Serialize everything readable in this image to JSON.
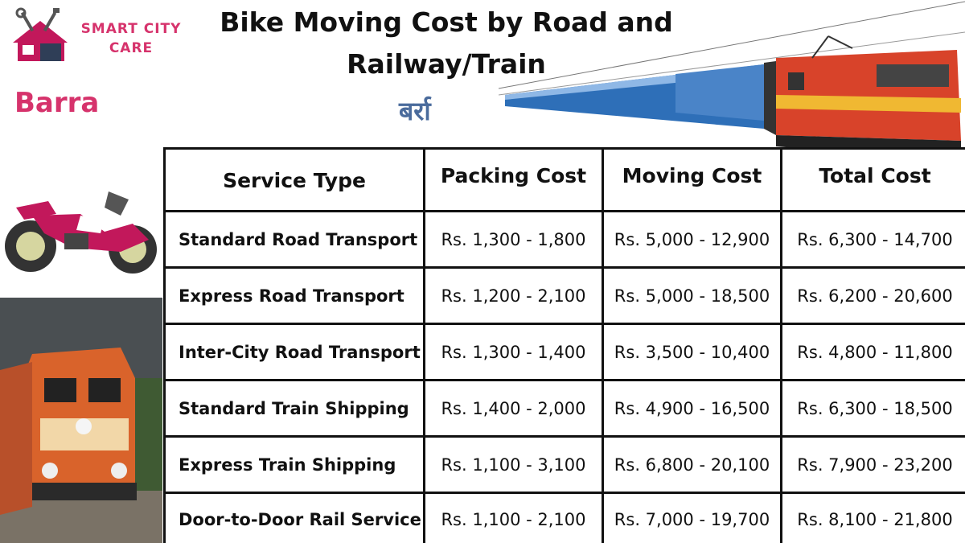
{
  "brand": {
    "line1": "SMART CITY",
    "line2": "CARE"
  },
  "title": {
    "line1": "Bike Moving Cost by Road and",
    "line2": "Railway/Train"
  },
  "place": {
    "english": "Barra",
    "hindi": "बर्रा"
  },
  "table": {
    "headers": [
      "Service Type",
      "Packing Cost",
      "Moving Cost",
      "Total Cost"
    ],
    "rows": [
      [
        "Standard Road Transport",
        "Rs. 1,300 - 1,800",
        "Rs. 5,000 - 12,900",
        "Rs. 6,300 - 14,700"
      ],
      [
        "Express Road Transport",
        "Rs. 1,200 - 2,100",
        "Rs. 5,000 - 18,500",
        "Rs. 6,200 - 20,600"
      ],
      [
        "Inter-City Road Transport",
        "Rs. 1,300 - 1,400",
        "Rs. 3,500 - 10,400",
        "Rs. 4,800 - 11,800"
      ],
      [
        "Standard Train Shipping",
        "Rs. 1,400 - 2,000",
        "Rs. 4,900 - 16,500",
        "Rs. 6,300 - 18,500"
      ],
      [
        "Express Train Shipping",
        "Rs. 1,100 - 3,100",
        "Rs. 6,800 - 20,100",
        "Rs. 7,900 - 23,200"
      ],
      [
        "Door-to-Door Rail Service",
        "Rs. 1,100 - 2,100",
        "Rs. 7,000 - 19,700",
        "Rs. 8,100 - 21,800"
      ]
    ]
  },
  "colors": {
    "brand_pink": "#d6336c",
    "hindi_blue": "#4a6b9c",
    "border": "#111111"
  },
  "icons": [
    "house-tools-logo-icon",
    "train-image",
    "motorbike-image",
    "locomotive-image"
  ]
}
